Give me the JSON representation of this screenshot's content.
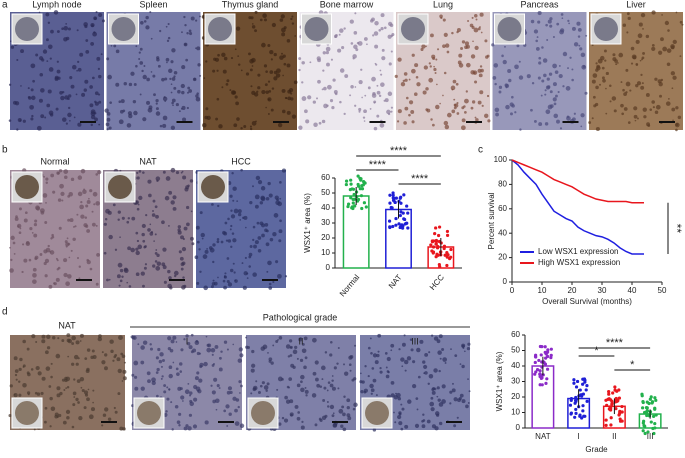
{
  "panel_labels": [
    "a",
    "b",
    "c",
    "d"
  ],
  "panel_a": {
    "tissues": [
      "Lymph node",
      "Spleen",
      "Thymus gland",
      "Bone marrow",
      "Lung",
      "Pancreas",
      "Liver"
    ]
  },
  "panel_b": {
    "images": [
      "Normal",
      "NAT",
      "HCC"
    ]
  },
  "panel_d": {
    "nat_label": "NAT",
    "group_title": "Pathological grade",
    "grades": [
      "I",
      "II",
      "III"
    ]
  },
  "chart_data": [
    {
      "type": "bar",
      "categories": [
        "Normal",
        "NAT",
        "HCC"
      ],
      "values": [
        48,
        39,
        14
      ],
      "errors": [
        6,
        6,
        6
      ],
      "colors": [
        "#22b14c",
        "#1f1fd6",
        "#e8161d"
      ],
      "ylabel": "WSX1⁺ area (%)",
      "ylim": [
        0,
        60
      ],
      "yticks": [
        0,
        10,
        20,
        30,
        40,
        50,
        60
      ],
      "significance": [
        "****",
        "****",
        "****"
      ]
    },
    {
      "type": "line",
      "xlabel": "Overall Survival (months)",
      "ylabel": "Percent survival",
      "x": [
        0,
        2,
        4,
        6,
        8,
        10,
        12,
        14,
        16,
        18,
        20,
        22,
        24,
        26,
        28,
        30,
        32,
        34,
        36,
        38,
        40,
        42,
        44
      ],
      "series": [
        {
          "name": "Low WSX1 expression",
          "color": "#1f1fe0",
          "values": [
            100,
            96,
            90,
            85,
            80,
            72,
            65,
            58,
            55,
            52,
            50,
            45,
            42,
            40,
            38,
            37,
            35,
            32,
            28,
            25,
            23,
            23,
            23
          ]
        },
        {
          "name": "High WSX1 expression",
          "color": "#e8161d",
          "values": [
            100,
            98,
            96,
            94,
            92,
            90,
            87,
            84,
            82,
            80,
            78,
            75,
            72,
            70,
            68,
            67,
            66,
            66,
            66,
            66,
            65,
            65,
            65
          ]
        }
      ],
      "xlim": [
        0,
        50
      ],
      "xticks": [
        0,
        10,
        20,
        30,
        40,
        50
      ],
      "ylim": [
        0,
        100
      ],
      "yticks": [
        0,
        20,
        40,
        60,
        80,
        100
      ],
      "annotation": "**"
    },
    {
      "type": "bar",
      "categories": [
        "NAT",
        "I",
        "II",
        "III"
      ],
      "values": [
        40,
        19,
        14,
        9
      ],
      "errors": [
        6,
        6,
        5,
        3
      ],
      "colors": [
        "#8b2bc8",
        "#1f1fd6",
        "#e8161d",
        "#22b14c"
      ],
      "ylabel": "WSX1⁺ area (%)",
      "xlabel": "Grade",
      "ylim": [
        0,
        60
      ],
      "yticks": [
        0,
        10,
        20,
        30,
        40,
        50,
        60
      ],
      "significance": [
        "*",
        "****",
        "*"
      ]
    }
  ]
}
